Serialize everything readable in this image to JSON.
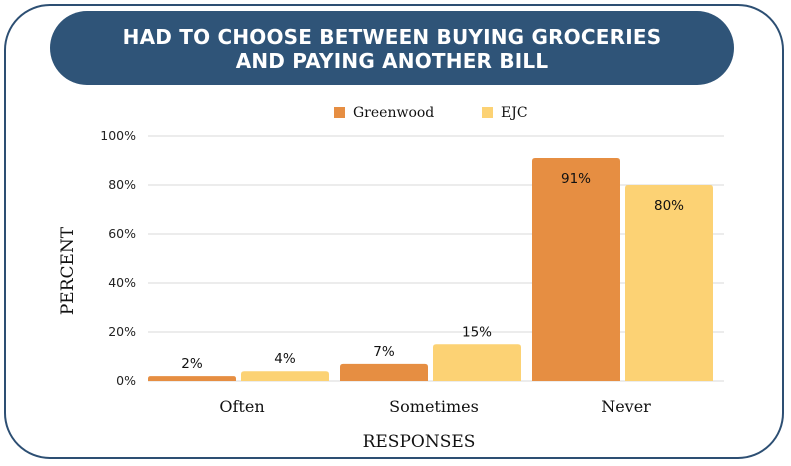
{
  "colors": {
    "frame": "#2d4f73",
    "banner": "#2f5478",
    "grid": "#d9d9d9"
  },
  "chart_data": {
    "type": "bar",
    "title_lines": [
      "HAD TO CHOOSE BETWEEN BUYING GROCERIES",
      "AND PAYING ANOTHER BILL"
    ],
    "categories": [
      "Often",
      "Sometimes",
      "Never"
    ],
    "series": [
      {
        "name": "Greenwood",
        "color": "#e68e42",
        "values": [
          2,
          7,
          91
        ],
        "labels": [
          "2%",
          "7%",
          "91%"
        ]
      },
      {
        "name": "EJC",
        "color": "#fcd274",
        "values": [
          4,
          15,
          80
        ],
        "labels": [
          "4%",
          "15%",
          "80%"
        ]
      }
    ],
    "xlabel": "RESPONSES",
    "ylabel": "PERCENT",
    "ylim": [
      0,
      100
    ],
    "yticks": [
      0,
      20,
      40,
      60,
      80,
      100
    ],
    "ytick_labels": [
      "0%",
      "20%",
      "40%",
      "60%",
      "80%",
      "100%"
    ],
    "grid": true,
    "legend": "top-center"
  }
}
